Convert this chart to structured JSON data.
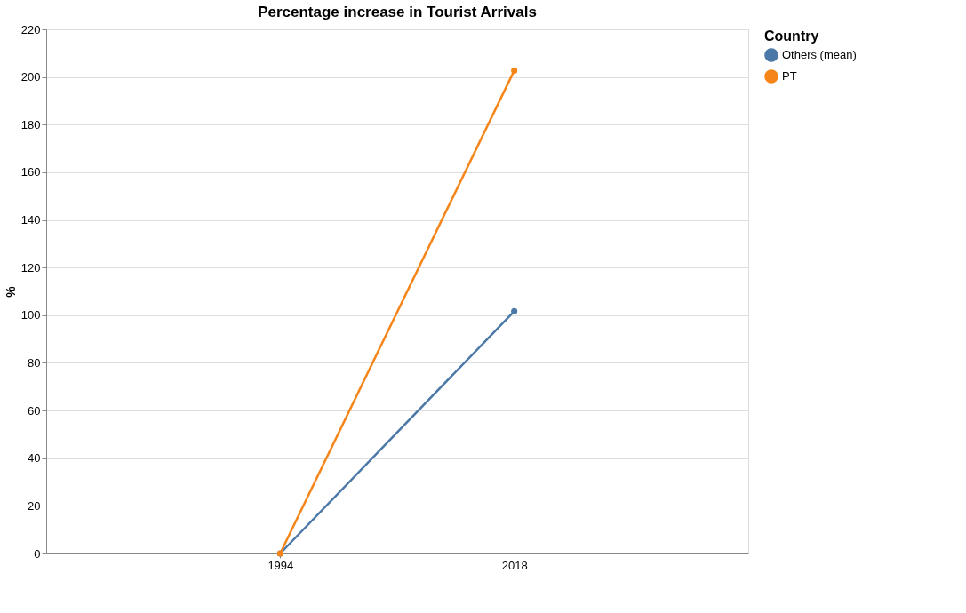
{
  "chart_data": {
    "type": "line",
    "title": "Percentage increase in Tourist Arrivals",
    "ylabel": "%",
    "legend_title": "Country",
    "categories": [
      "1994",
      "2018"
    ],
    "series": [
      {
        "name": "Others (mean)",
        "color": "#4c78a8",
        "values": [
          0,
          101.7
        ]
      },
      {
        "name": "PT",
        "color": "#f58518",
        "values": [
          0,
          202.7
        ]
      }
    ],
    "ylim": [
      0,
      220
    ],
    "yticks": [
      0,
      20,
      40,
      60,
      80,
      100,
      120,
      140,
      160,
      180,
      200,
      220
    ],
    "grid": "y",
    "legend": "top right",
    "marker": "circle",
    "line_style": "solid"
  }
}
